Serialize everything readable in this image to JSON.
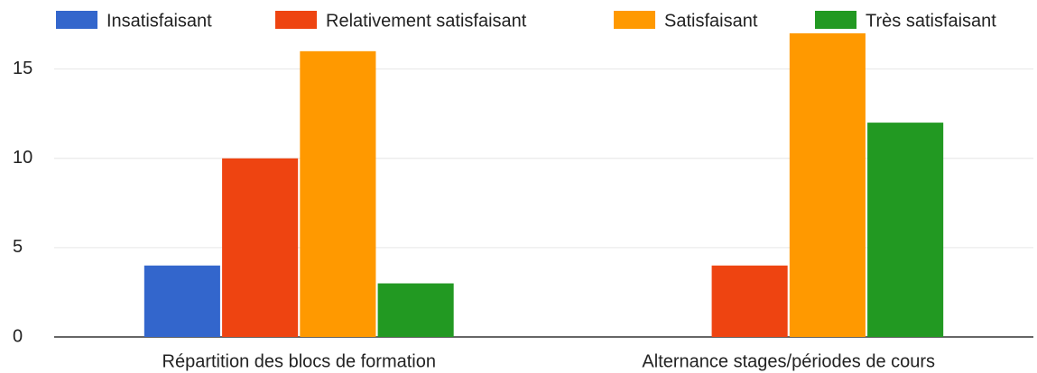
{
  "chart_data": {
    "type": "bar",
    "categories": [
      "Répartition des blocs de formation",
      "Alternance stages/périodes de cours"
    ],
    "series": [
      {
        "name": "Insatisfaisant",
        "color": "#3366cc",
        "values": [
          4,
          0
        ]
      },
      {
        "name": "Relativement satisfaisant",
        "color": "#ee4411",
        "values": [
          10,
          4
        ]
      },
      {
        "name": "Satisfaisant",
        "color": "#ff9900",
        "values": [
          16,
          17
        ]
      },
      {
        "name": "Très satisfaisant",
        "color": "#229922",
        "values": [
          3,
          12
        ]
      }
    ],
    "ylim": [
      0,
      17
    ],
    "yticks": [
      0,
      5,
      10,
      15
    ],
    "grid": true,
    "legend": "top"
  }
}
